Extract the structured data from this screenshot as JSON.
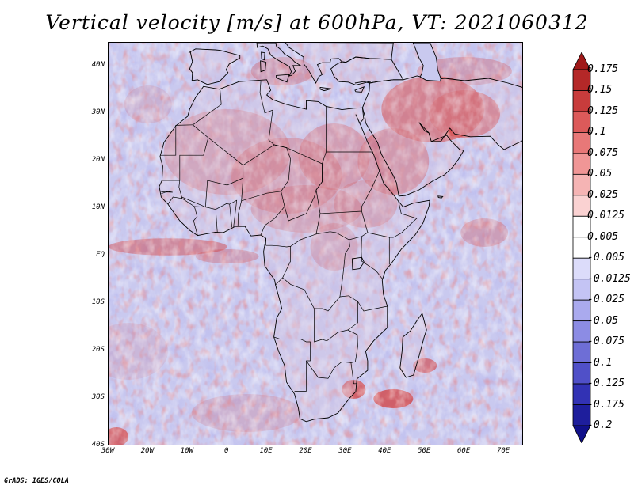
{
  "title": "Vertical velocity [m/s] at 600hPa, VT: 2021060312",
  "credit": "GrADS: IGES/COLA",
  "map": {
    "lon_range": [
      -30,
      75
    ],
    "lat_range": [
      -40,
      45
    ],
    "lat_labels": [
      "40N",
      "30N",
      "20N",
      "10N",
      "EQ",
      "10S",
      "20S",
      "30S",
      "40S"
    ],
    "lat_values": [
      40,
      30,
      20,
      10,
      0,
      -10,
      -20,
      -30,
      -40
    ],
    "lon_labels": [
      "30W",
      "20W",
      "10W",
      "0",
      "10E",
      "20E",
      "30E",
      "40E",
      "50E",
      "60E",
      "70E"
    ],
    "lon_values": [
      -30,
      -20,
      -10,
      0,
      10,
      20,
      30,
      40,
      50,
      60,
      70
    ],
    "base_color": "#c9c9ef",
    "land_color": "#d7c7df"
  },
  "colorbar": {
    "labels": [
      "0.175",
      "0.15",
      "0.125",
      "0.1",
      "0.075",
      "0.05",
      "0.025",
      "0.0125",
      "0.005",
      "-0.005",
      "-0.0125",
      "-0.025",
      "-0.05",
      "-0.075",
      "-0.1",
      "-0.125",
      "-0.175",
      "-0.2"
    ],
    "colors": [
      "#a01818",
      "#b42828",
      "#c83c3c",
      "#dc5a5a",
      "#e87878",
      "#f09696",
      "#f5b4b4",
      "#fad2d2",
      "#ffffff",
      "#ffffff",
      "#dcdcfa",
      "#c4c4f4",
      "#aaaaee",
      "#8c8ce4",
      "#6e6ed6",
      "#5050c8",
      "#3232b4",
      "#1e1e9c",
      "#10108a"
    ]
  },
  "chart_data": {
    "type": "heatmap",
    "title": "Vertical velocity [m/s] at 600hPa, VT: 2021060312",
    "xlabel": "",
    "ylabel": "",
    "xlim": [
      -30,
      75
    ],
    "ylim": [
      -40,
      45
    ],
    "variable": "Vertical velocity",
    "units": "m/s",
    "level": "600hPa",
    "valid_time": "2021060312",
    "contour_levels": [
      -0.2,
      -0.175,
      -0.125,
      -0.1,
      -0.075,
      -0.05,
      -0.025,
      -0.0125,
      -0.005,
      0.005,
      0.0125,
      0.025,
      0.05,
      0.075,
      0.1,
      0.125,
      0.15,
      0.175
    ]
  }
}
